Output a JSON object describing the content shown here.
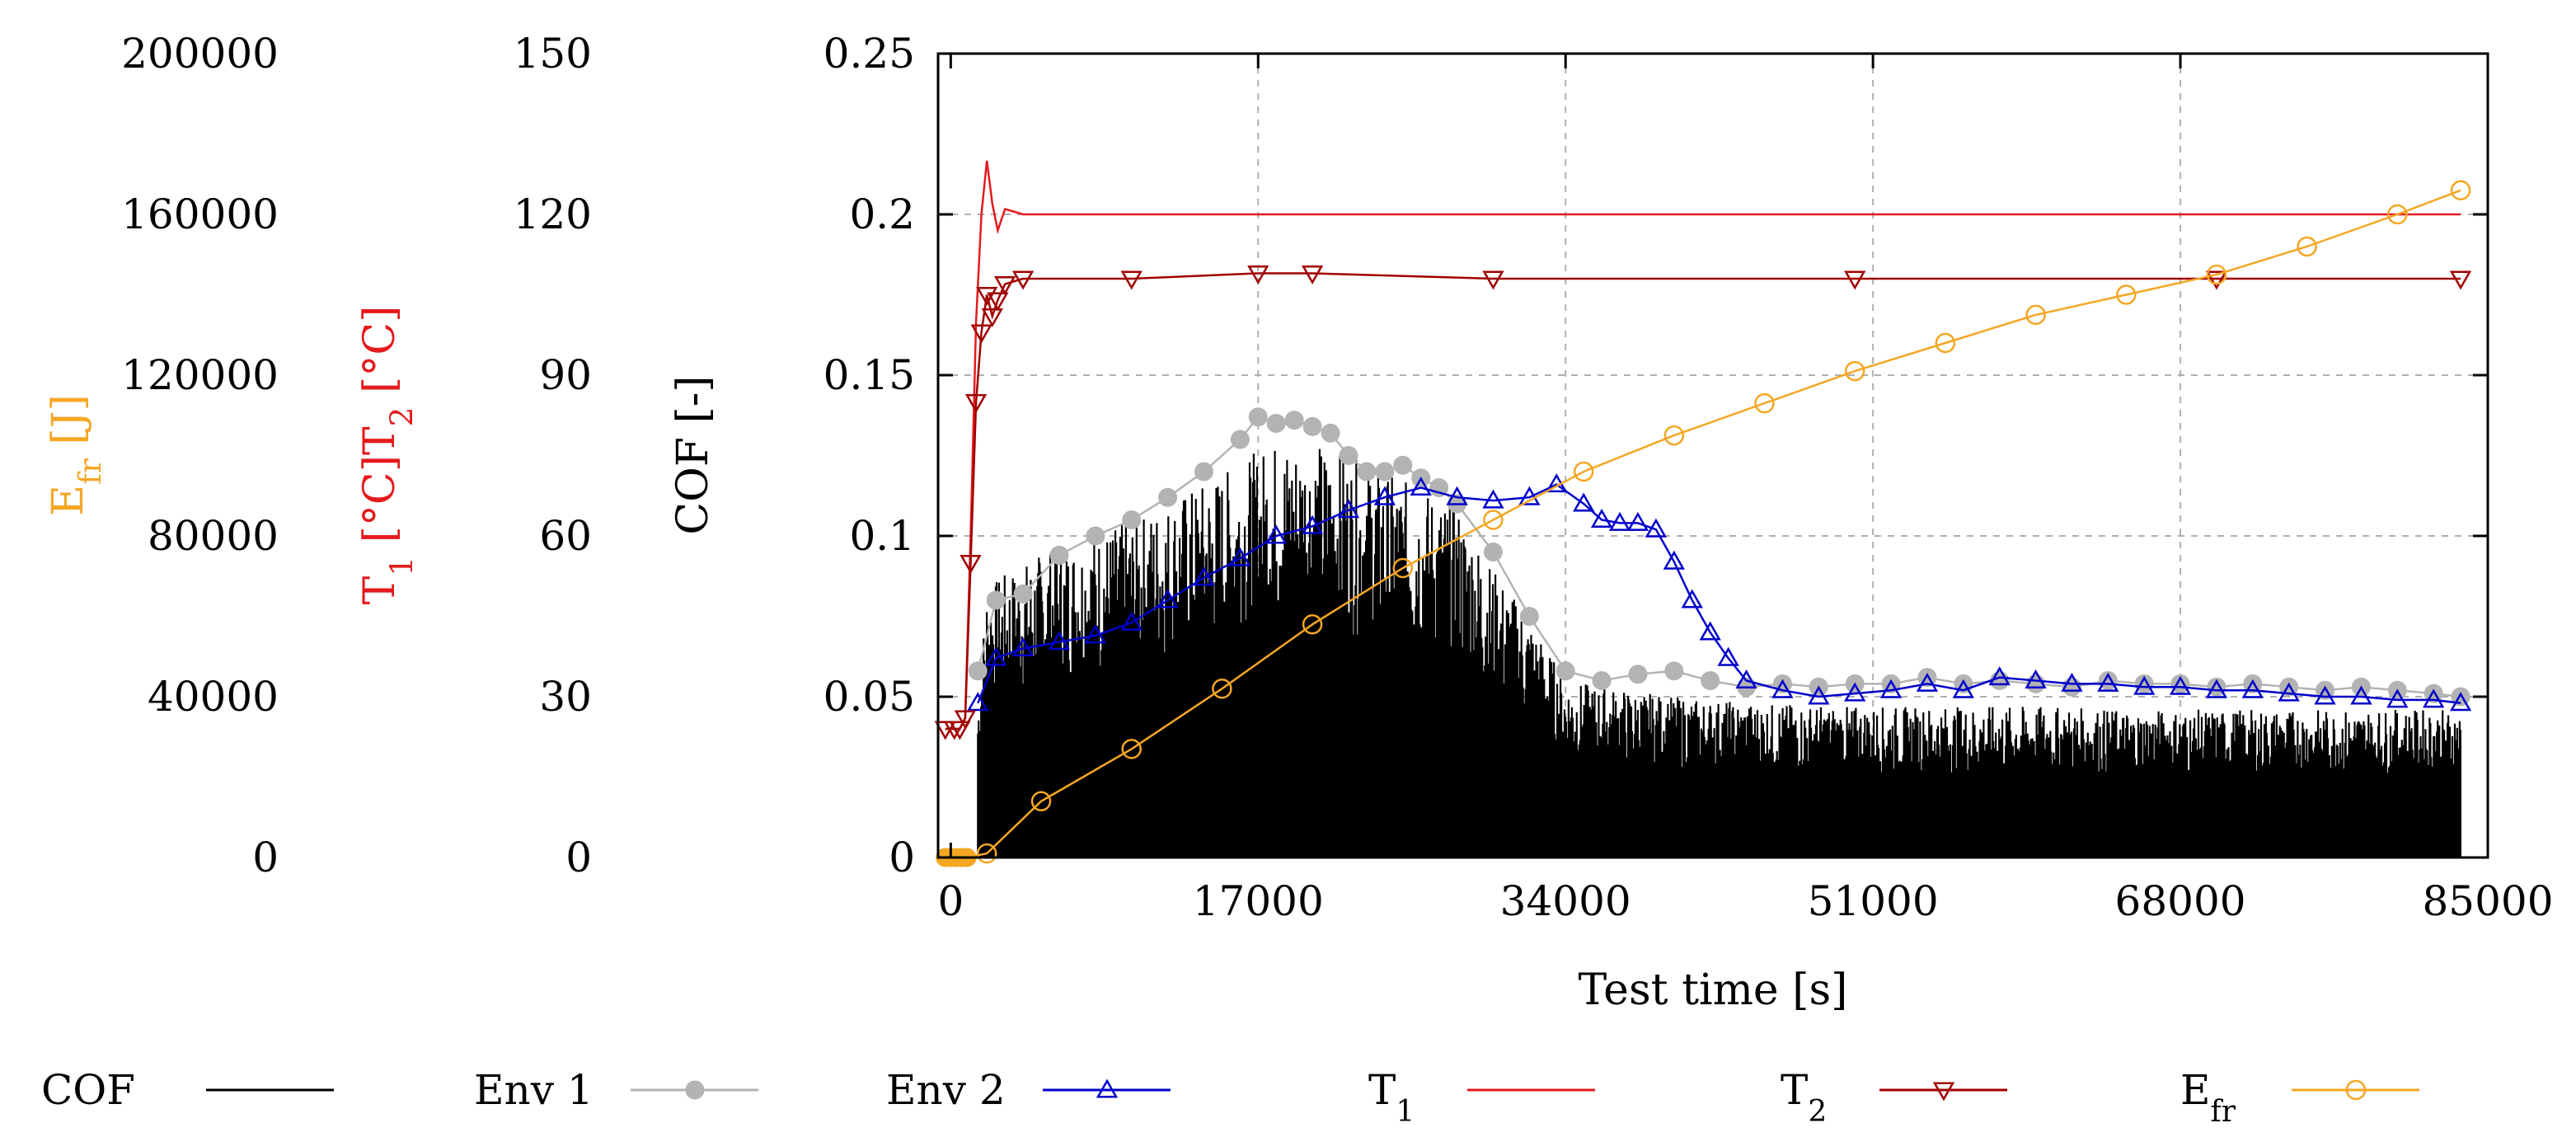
{
  "chart_data": {
    "type": "line",
    "title": "",
    "xlabel": "Test time [s]",
    "xlim": [
      0,
      85000
    ],
    "x_ticks": [
      0,
      17000,
      34000,
      51000,
      68000,
      85000
    ],
    "x_tick_labels": [
      "0",
      "17000",
      "34000",
      "51000",
      "68000",
      "85000"
    ],
    "grid": true,
    "legend_position": "bottom",
    "axes": [
      {
        "id": "cof",
        "label": "COF [-]",
        "color": "#000000",
        "ylim": [
          0,
          0.25
        ],
        "tick_labels": [
          "0",
          "0.05",
          "0.1",
          "0.15",
          "0.2",
          "0.25"
        ]
      },
      {
        "id": "temp",
        "label_parts": [
          "T",
          "1",
          " [°C]T",
          "2",
          " [°C]"
        ],
        "color": "#e41a1c",
        "ylim": [
          0,
          150
        ],
        "tick_labels": [
          "0",
          "30",
          "60",
          "90",
          "120",
          "150"
        ]
      },
      {
        "id": "energy",
        "label_parts": [
          "E",
          "fr",
          " [J]"
        ],
        "color": "#f5a623",
        "ylim": [
          0,
          200000
        ],
        "tick_labels": [
          "0",
          "40000",
          "80000",
          "120000",
          "160000",
          "200000"
        ]
      }
    ],
    "series": [
      {
        "name": "COF",
        "axis": "cof",
        "color": "#000000",
        "marker": "none",
        "note": "dense oscillating raw signal, approx. band min/max",
        "x": [
          1500,
          2000,
          5000,
          10000,
          15000,
          18000,
          20000,
          24000,
          28000,
          30000,
          32000,
          34000,
          40000,
          45000,
          50000,
          55000,
          60000,
          65000,
          70000,
          75000,
          80000,
          83500
        ],
        "ymax": [
          0.05,
          0.085,
          0.095,
          0.105,
          0.12,
          0.13,
          0.13,
          0.12,
          0.11,
          0.09,
          0.075,
          0.055,
          0.05,
          0.048,
          0.047,
          0.047,
          0.047,
          0.046,
          0.046,
          0.046,
          0.046,
          0.046
        ],
        "ymin": [
          0,
          0,
          0,
          0,
          0,
          0,
          0,
          0,
          0,
          0,
          0,
          0,
          0,
          0,
          0,
          0,
          0,
          0,
          0,
          0,
          0,
          0
        ]
      },
      {
        "name": "Env 1",
        "axis": "cof",
        "color": "#b3b3b3",
        "marker": "circle-filled",
        "x": [
          1500,
          2500,
          4000,
          6000,
          8000,
          10000,
          12000,
          14000,
          16000,
          17000,
          18000,
          19000,
          20000,
          21000,
          22000,
          23000,
          24000,
          25000,
          26000,
          27000,
          28000,
          30000,
          32000,
          34000,
          36000,
          38000,
          40000,
          42000,
          44000,
          46000,
          48000,
          50000,
          52000,
          54000,
          56000,
          58000,
          60000,
          62000,
          64000,
          66000,
          68000,
          70000,
          72000,
          74000,
          76000,
          78000,
          80000,
          82000,
          83500
        ],
        "y": [
          0.058,
          0.08,
          0.082,
          0.094,
          0.1,
          0.105,
          0.112,
          0.12,
          0.13,
          0.137,
          0.135,
          0.136,
          0.134,
          0.132,
          0.125,
          0.12,
          0.12,
          0.122,
          0.118,
          0.115,
          0.11,
          0.095,
          0.075,
          0.058,
          0.055,
          0.057,
          0.058,
          0.055,
          0.053,
          0.054,
          0.053,
          0.054,
          0.054,
          0.056,
          0.054,
          0.055,
          0.054,
          0.053,
          0.055,
          0.054,
          0.054,
          0.053,
          0.054,
          0.053,
          0.052,
          0.053,
          0.052,
          0.051,
          0.05
        ]
      },
      {
        "name": "Env 2",
        "axis": "cof",
        "color": "#0000cc",
        "marker": "triangle-up",
        "x": [
          1500,
          2500,
          4000,
          6000,
          8000,
          10000,
          12000,
          14000,
          16000,
          18000,
          20000,
          22000,
          24000,
          26000,
          28000,
          30000,
          32000,
          33500,
          35000,
          36000,
          37000,
          38000,
          39000,
          40000,
          41000,
          42000,
          43000,
          44000,
          46000,
          48000,
          50000,
          52000,
          54000,
          56000,
          58000,
          60000,
          62000,
          64000,
          66000,
          68000,
          70000,
          72000,
          74000,
          76000,
          78000,
          80000,
          82000,
          83500
        ],
        "y": [
          0.048,
          0.062,
          0.065,
          0.067,
          0.069,
          0.073,
          0.08,
          0.087,
          0.093,
          0.1,
          0.103,
          0.108,
          0.112,
          0.115,
          0.112,
          0.111,
          0.112,
          0.116,
          0.11,
          0.105,
          0.104,
          0.104,
          0.102,
          0.092,
          0.08,
          0.07,
          0.062,
          0.055,
          0.052,
          0.05,
          0.051,
          0.052,
          0.054,
          0.052,
          0.056,
          0.055,
          0.054,
          0.054,
          0.053,
          0.053,
          0.052,
          0.052,
          0.051,
          0.05,
          0.05,
          0.049,
          0.049,
          0.048
        ]
      },
      {
        "name": "T1",
        "label_parts": [
          "T",
          "1"
        ],
        "axis": "temp",
        "color": "#e41a1c",
        "marker": "none",
        "x": [
          -300,
          200,
          500,
          800,
          1100,
          1400,
          1700,
          2000,
          2300,
          2600,
          3000,
          4000,
          10000,
          30000,
          50000,
          70000,
          83500
        ],
        "y": [
          24,
          24,
          24,
          26,
          60,
          100,
          120,
          130,
          122,
          117,
          121,
          120,
          120,
          120,
          120,
          120,
          120
        ]
      },
      {
        "name": "T2",
        "label_parts": [
          "T",
          "2"
        ],
        "axis": "temp",
        "color": "#a00000",
        "marker": "triangle-down",
        "x": [
          -300,
          200,
          500,
          800,
          1100,
          1400,
          1700,
          2000,
          2300,
          2600,
          3000,
          4000,
          10000,
          17000,
          20000,
          30000,
          50000,
          70000,
          83500
        ],
        "y": [
          24,
          24,
          24,
          26,
          55,
          85,
          98,
          105,
          101,
          104,
          107,
          108,
          108,
          109,
          109,
          108,
          108,
          108,
          108
        ]
      },
      {
        "name": "E_fr",
        "label_parts": [
          "E",
          "fr"
        ],
        "axis": "energy",
        "color": "#f5a623",
        "marker": "circle-open",
        "x": [
          -300,
          0,
          300,
          600,
          900,
          2000,
          5000,
          10000,
          15000,
          20000,
          25000,
          30000,
          35000,
          40000,
          45000,
          50000,
          55000,
          60000,
          65000,
          70000,
          75000,
          80000,
          83500
        ],
        "y": [
          0,
          0,
          0,
          0,
          0,
          1000,
          14000,
          27000,
          42000,
          58000,
          72000,
          84000,
          96000,
          105000,
          113000,
          121000,
          128000,
          135000,
          140000,
          145000,
          152000,
          160000,
          166000
        ]
      }
    ]
  }
}
